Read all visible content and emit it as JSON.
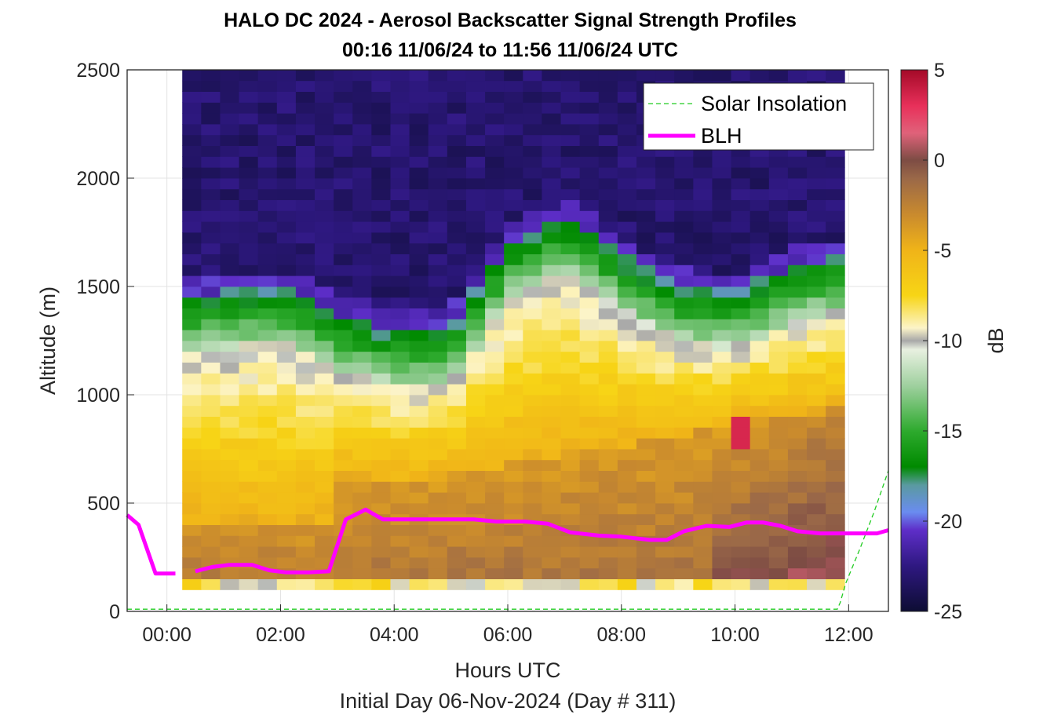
{
  "chart_data": {
    "type": "heatmap",
    "title": "HALO DC 2024 - Aerosol Backscatter Signal Strength Profiles",
    "subtitle": "00:16 11/06/24 to 11:56 11/06/24  UTC",
    "xlabel": "Hours UTC",
    "xlabel2": "Initial Day 06-Nov-2024 (Day # 311)",
    "ylabel": "Altitude (m)",
    "xlim": [
      -0.7,
      12.7
    ],
    "ylim": [
      0,
      2500
    ],
    "x_ticks": [
      0,
      2,
      4,
      6,
      8,
      10,
      12
    ],
    "x_tick_labels": [
      "00:00",
      "02:00",
      "04:00",
      "06:00",
      "08:00",
      "10:00",
      "12:00"
    ],
    "y_ticks": [
      0,
      500,
      1000,
      1500,
      2000,
      2500
    ],
    "y_tick_labels": [
      "0",
      "500",
      "1000",
      "1500",
      "2000",
      "2500"
    ],
    "grid": true,
    "legend_position": "top-right",
    "heatmap": {
      "x_start": 0.27,
      "x_end": 11.93,
      "y_bottom": 100,
      "y_top": 2500,
      "columns": 35,
      "rows": 48,
      "colorbar_label": "dB",
      "colorbar_range": [
        -25,
        5
      ],
      "colorbar_ticks": [
        5,
        0,
        -5,
        -10,
        -15,
        -20,
        -25
      ],
      "colorbar_tick_labels": [
        "5",
        "0",
        "-5",
        "-10",
        "-15",
        "-20",
        "-25"
      ],
      "colormap_stops": [
        {
          "v": -25,
          "c": "#0d0d33"
        },
        {
          "v": -22.5,
          "c": "#2e1880"
        },
        {
          "v": -20.5,
          "c": "#5e2ec8"
        },
        {
          "v": -19.5,
          "c": "#6a8cf0"
        },
        {
          "v": -18,
          "c": "#5a9aa0"
        },
        {
          "v": -17,
          "c": "#008a00"
        },
        {
          "v": -15,
          "c": "#2eaa2e"
        },
        {
          "v": -12.5,
          "c": "#9fd09f"
        },
        {
          "v": -10.5,
          "c": "#e8f0e0"
        },
        {
          "v": -10,
          "c": "#a8a8a8"
        },
        {
          "v": -9.3,
          "c": "#fcf4c8"
        },
        {
          "v": -7.5,
          "c": "#f7d516"
        },
        {
          "v": -5,
          "c": "#f0b418"
        },
        {
          "v": -3,
          "c": "#c98a2e"
        },
        {
          "v": -1,
          "c": "#9a6848"
        },
        {
          "v": 0,
          "c": "#7d4c44"
        },
        {
          "v": 1.5,
          "c": "#e0627a"
        },
        {
          "v": 3,
          "c": "#e8305a"
        },
        {
          "v": 5,
          "c": "#a40a28"
        }
      ]
    },
    "series": [
      {
        "name": "Solar Insolation",
        "style": "dashed",
        "color": "#22cc22",
        "x": [
          -0.7,
          11.8,
          11.85,
          11.95,
          12.2,
          12.45,
          12.7
        ],
        "y": [
          10,
          10,
          40,
          130,
          290,
          460,
          650
        ]
      },
      {
        "name": "BLH",
        "style": "solid",
        "color": "#ff00ff",
        "segments": [
          {
            "x": [
              -0.7,
              -0.5,
              -0.2,
              0.15
            ],
            "y": [
              445,
              400,
              175,
              175
            ]
          },
          {
            "x": [
              0.5,
              0.8,
              1.1,
              1.5,
              1.8,
              2.1,
              2.5,
              2.85,
              3.15,
              3.5,
              3.8,
              4.2,
              4.6,
              5.0,
              5.4,
              5.8,
              6.3,
              6.7,
              7.1,
              7.6,
              8.0,
              8.5,
              8.8,
              9.1,
              9.5,
              9.9,
              10.2,
              10.5,
              10.8,
              11.1,
              11.5,
              12.0,
              12.5,
              12.7
            ],
            "y": [
              185,
              205,
              215,
              215,
              190,
              180,
              180,
              185,
              425,
              470,
              425,
              425,
              425,
              425,
              425,
              415,
              415,
              405,
              365,
              350,
              345,
              330,
              330,
              370,
              395,
              390,
              410,
              410,
              395,
              370,
              360,
              360,
              360,
              375
            ]
          }
        ]
      }
    ]
  }
}
